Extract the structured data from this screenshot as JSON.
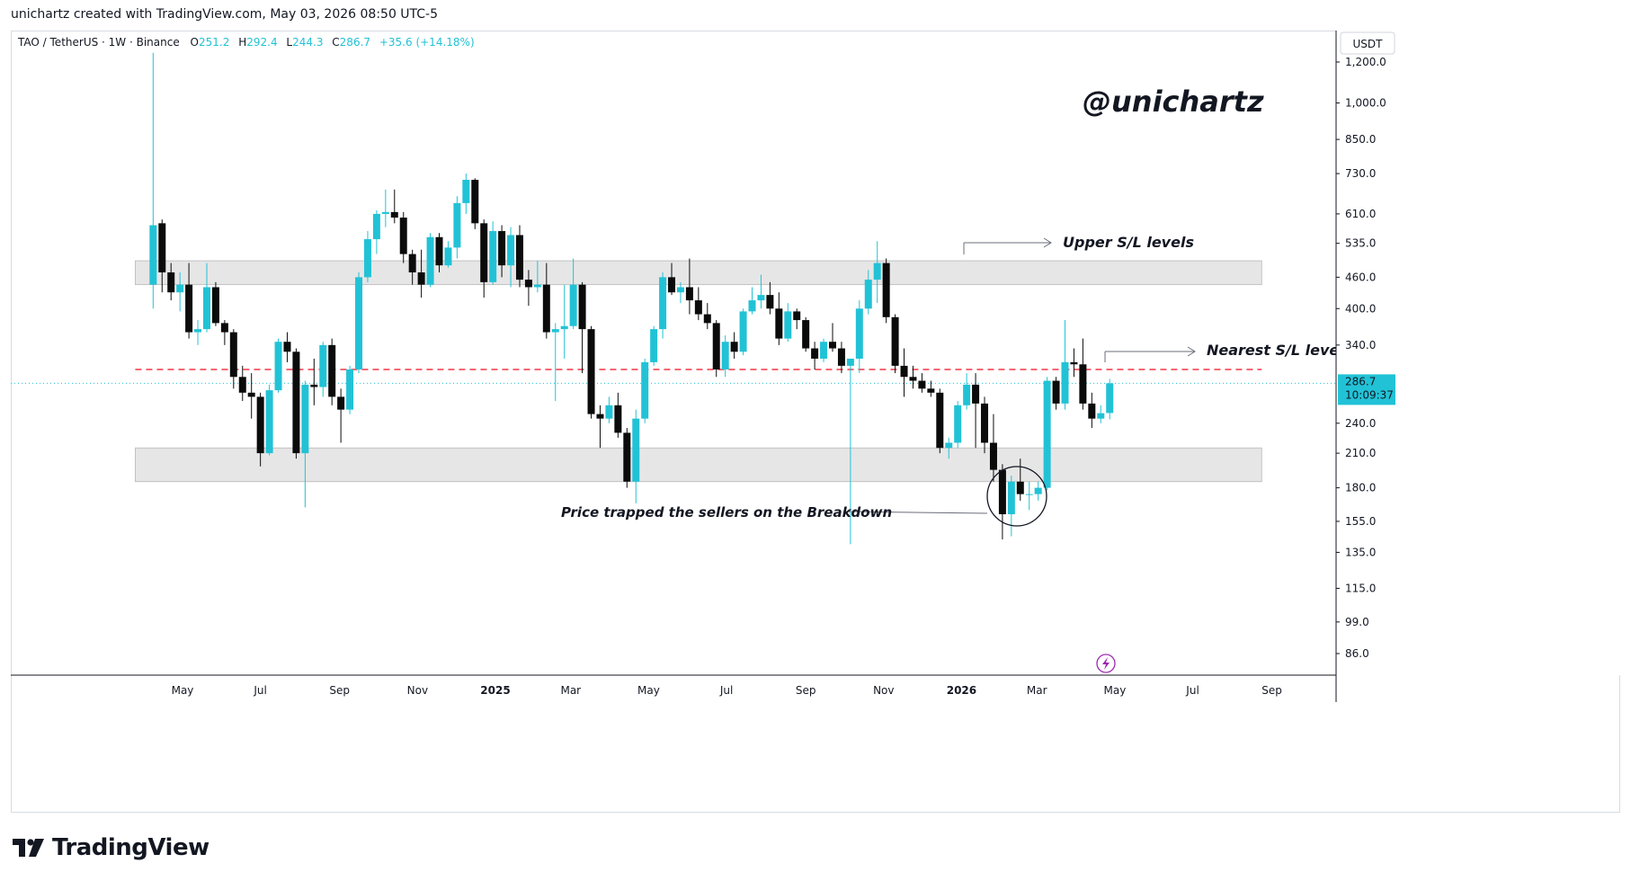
{
  "header": {
    "credit": "unichartz created with TradingView.com, May 03, 2026 08:50 UTC-5"
  },
  "legend": {
    "symbol": "TAO / TetherUS · 1W · Binance",
    "o_label": "O",
    "o_value": "251.2",
    "h_label": "H",
    "h_value": "292.4",
    "l_label": "L",
    "l_value": "244.3",
    "c_label": "C",
    "c_value": "286.7",
    "change": "+35.6 (+14.18%)"
  },
  "watermark": "@unichartz",
  "currency": "USDT",
  "price_badge": {
    "price": "286.7",
    "countdown": "10:09:37"
  },
  "annotations": {
    "upper": "Upper S/L levels",
    "nearest": "Nearest S/L levels",
    "trap": "Price trapped the sellers on the Breakdown"
  },
  "footer": {
    "brand": "TradingView"
  },
  "colors": {
    "up": "#22c2d6",
    "down": "#0b0b0b",
    "zone": "#e3e3e3",
    "dashed": "#f23645",
    "current": "#22c2d6",
    "legend_value": "#22c2d6",
    "flash": "#9c27b0"
  },
  "chart_data": {
    "type": "candlestick",
    "scale": "log",
    "ylim": [
      78,
      1250
    ],
    "yticks": [
      "1,200.0",
      "1,000.0",
      "850.0",
      "730.0",
      "610.0",
      "535.0",
      "460.0",
      "400.0",
      "340.0",
      "286.7",
      "240.0",
      "210.0",
      "180.0",
      "155.0",
      "135.0",
      "115.0",
      "99.0",
      "86.0"
    ],
    "ytick_values": [
      1200,
      1000,
      850,
      730,
      610,
      535,
      460,
      400,
      340,
      286.7,
      240,
      210,
      180,
      155,
      135,
      115,
      99,
      86
    ],
    "xticks": [
      {
        "label": "May",
        "date": "2024-05-01",
        "bold": false
      },
      {
        "label": "Jul",
        "date": "2024-07-01",
        "bold": false
      },
      {
        "label": "Sep",
        "date": "2024-09-01",
        "bold": false
      },
      {
        "label": "Nov",
        "date": "2024-11-01",
        "bold": false
      },
      {
        "label": "2025",
        "date": "2025-01-01",
        "bold": true
      },
      {
        "label": "Mar",
        "date": "2025-03-01",
        "bold": false
      },
      {
        "label": "May",
        "date": "2025-05-01",
        "bold": false
      },
      {
        "label": "Jul",
        "date": "2025-07-01",
        "bold": false
      },
      {
        "label": "Sep",
        "date": "2025-09-01",
        "bold": false
      },
      {
        "label": "Nov",
        "date": "2025-11-01",
        "bold": false
      },
      {
        "label": "2026",
        "date": "2026-01-01",
        "bold": true
      },
      {
        "label": "Mar",
        "date": "2026-03-01",
        "bold": false
      },
      {
        "label": "May",
        "date": "2026-05-01",
        "bold": false
      },
      {
        "label": "Jul",
        "date": "2026-07-01",
        "bold": false
      },
      {
        "label": "Sep",
        "date": "2026-09-01",
        "bold": false
      }
    ],
    "zones": [
      {
        "from": "2024-03-25",
        "to": "2026-08-24",
        "low": 445,
        "high": 495
      },
      {
        "from": "2024-03-25",
        "to": "2026-08-24",
        "low": 185,
        "high": 215
      }
    ],
    "levels": [
      {
        "price": 305,
        "style": "dashed",
        "from": "2024-03-25",
        "to": "2026-08-24"
      }
    ],
    "current_price": 286.7,
    "candles": [
      {
        "date": "2024-04-08",
        "o": 445,
        "h": 1250,
        "l": 400,
        "c": 580
      },
      {
        "date": "2024-04-15",
        "o": 585,
        "h": 595,
        "l": 430,
        "c": 470
      },
      {
        "date": "2024-04-22",
        "o": 470,
        "h": 490,
        "l": 415,
        "c": 430
      },
      {
        "date": "2024-04-29",
        "o": 430,
        "h": 470,
        "l": 395,
        "c": 445
      },
      {
        "date": "2024-05-06",
        "o": 445,
        "h": 490,
        "l": 350,
        "c": 360
      },
      {
        "date": "2024-05-13",
        "o": 360,
        "h": 380,
        "l": 340,
        "c": 365
      },
      {
        "date": "2024-05-20",
        "o": 365,
        "h": 490,
        "l": 360,
        "c": 440
      },
      {
        "date": "2024-05-27",
        "o": 440,
        "h": 450,
        "l": 370,
        "c": 375
      },
      {
        "date": "2024-06-03",
        "o": 375,
        "h": 380,
        "l": 340,
        "c": 360
      },
      {
        "date": "2024-06-10",
        "o": 360,
        "h": 365,
        "l": 280,
        "c": 295
      },
      {
        "date": "2024-06-17",
        "o": 295,
        "h": 310,
        "l": 265,
        "c": 275
      },
      {
        "date": "2024-06-24",
        "o": 275,
        "h": 300,
        "l": 245,
        "c": 270
      },
      {
        "date": "2024-07-01",
        "o": 270,
        "h": 275,
        "l": 198,
        "c": 210
      },
      {
        "date": "2024-07-08",
        "o": 210,
        "h": 285,
        "l": 208,
        "c": 278
      },
      {
        "date": "2024-07-15",
        "o": 278,
        "h": 350,
        "l": 275,
        "c": 345
      },
      {
        "date": "2024-07-22",
        "o": 345,
        "h": 360,
        "l": 315,
        "c": 330
      },
      {
        "date": "2024-07-29",
        "o": 330,
        "h": 335,
        "l": 205,
        "c": 210
      },
      {
        "date": "2024-08-05",
        "o": 210,
        "h": 290,
        "l": 165,
        "c": 285
      },
      {
        "date": "2024-08-12",
        "o": 285,
        "h": 320,
        "l": 260,
        "c": 282
      },
      {
        "date": "2024-08-19",
        "o": 282,
        "h": 345,
        "l": 270,
        "c": 340
      },
      {
        "date": "2024-08-26",
        "o": 340,
        "h": 350,
        "l": 260,
        "c": 270
      },
      {
        "date": "2024-09-02",
        "o": 270,
        "h": 280,
        "l": 220,
        "c": 255
      },
      {
        "date": "2024-09-09",
        "o": 255,
        "h": 310,
        "l": 250,
        "c": 305
      },
      {
        "date": "2024-09-16",
        "o": 305,
        "h": 470,
        "l": 300,
        "c": 460
      },
      {
        "date": "2024-09-23",
        "o": 460,
        "h": 565,
        "l": 450,
        "c": 545
      },
      {
        "date": "2024-09-30",
        "o": 545,
        "h": 620,
        "l": 510,
        "c": 610
      },
      {
        "date": "2024-10-07",
        "o": 610,
        "h": 680,
        "l": 575,
        "c": 615
      },
      {
        "date": "2024-10-14",
        "o": 615,
        "h": 680,
        "l": 585,
        "c": 600
      },
      {
        "date": "2024-10-21",
        "o": 600,
        "h": 615,
        "l": 490,
        "c": 510
      },
      {
        "date": "2024-10-28",
        "o": 510,
        "h": 520,
        "l": 445,
        "c": 470
      },
      {
        "date": "2024-11-04",
        "o": 470,
        "h": 520,
        "l": 420,
        "c": 445
      },
      {
        "date": "2024-11-11",
        "o": 445,
        "h": 560,
        "l": 440,
        "c": 550
      },
      {
        "date": "2024-11-18",
        "o": 550,
        "h": 560,
        "l": 470,
        "c": 485
      },
      {
        "date": "2024-11-25",
        "o": 485,
        "h": 540,
        "l": 480,
        "c": 525
      },
      {
        "date": "2024-12-02",
        "o": 525,
        "h": 660,
        "l": 500,
        "c": 640
      },
      {
        "date": "2024-12-09",
        "o": 640,
        "h": 730,
        "l": 610,
        "c": 710
      },
      {
        "date": "2024-12-16",
        "o": 710,
        "h": 715,
        "l": 570,
        "c": 585
      },
      {
        "date": "2024-12-23",
        "o": 585,
        "h": 595,
        "l": 420,
        "c": 450
      },
      {
        "date": "2024-12-30",
        "o": 450,
        "h": 590,
        "l": 445,
        "c": 565
      },
      {
        "date": "2025-01-06",
        "o": 565,
        "h": 580,
        "l": 460,
        "c": 485
      },
      {
        "date": "2025-01-13",
        "o": 485,
        "h": 575,
        "l": 440,
        "c": 555
      },
      {
        "date": "2025-01-20",
        "o": 555,
        "h": 580,
        "l": 440,
        "c": 455
      },
      {
        "date": "2025-01-27",
        "o": 455,
        "h": 475,
        "l": 405,
        "c": 440
      },
      {
        "date": "2025-02-03",
        "o": 440,
        "h": 495,
        "l": 430,
        "c": 445
      },
      {
        "date": "2025-02-10",
        "o": 445,
        "h": 490,
        "l": 350,
        "c": 360
      },
      {
        "date": "2025-02-17",
        "o": 360,
        "h": 375,
        "l": 265,
        "c": 365
      },
      {
        "date": "2025-02-24",
        "o": 365,
        "h": 445,
        "l": 320,
        "c": 370
      },
      {
        "date": "2025-03-03",
        "o": 370,
        "h": 500,
        "l": 365,
        "c": 445
      },
      {
        "date": "2025-03-10",
        "o": 445,
        "h": 450,
        "l": 300,
        "c": 365
      },
      {
        "date": "2025-03-17",
        "o": 365,
        "h": 370,
        "l": 245,
        "c": 250
      },
      {
        "date": "2025-03-24",
        "o": 250,
        "h": 260,
        "l": 215,
        "c": 245
      },
      {
        "date": "2025-03-31",
        "o": 245,
        "h": 270,
        "l": 240,
        "c": 260
      },
      {
        "date": "2025-04-07",
        "o": 260,
        "h": 275,
        "l": 225,
        "c": 230
      },
      {
        "date": "2025-04-14",
        "o": 230,
        "h": 235,
        "l": 180,
        "c": 185
      },
      {
        "date": "2025-04-21",
        "o": 185,
        "h": 255,
        "l": 168,
        "c": 245
      },
      {
        "date": "2025-04-28",
        "o": 245,
        "h": 320,
        "l": 240,
        "c": 315
      },
      {
        "date": "2025-05-05",
        "o": 315,
        "h": 370,
        "l": 310,
        "c": 365
      },
      {
        "date": "2025-05-12",
        "o": 365,
        "h": 470,
        "l": 350,
        "c": 460
      },
      {
        "date": "2025-05-19",
        "o": 460,
        "h": 490,
        "l": 425,
        "c": 430
      },
      {
        "date": "2025-05-26",
        "o": 430,
        "h": 450,
        "l": 410,
        "c": 440
      },
      {
        "date": "2025-06-02",
        "o": 440,
        "h": 500,
        "l": 390,
        "c": 415
      },
      {
        "date": "2025-06-09",
        "o": 415,
        "h": 440,
        "l": 380,
        "c": 390
      },
      {
        "date": "2025-06-16",
        "o": 390,
        "h": 410,
        "l": 365,
        "c": 375
      },
      {
        "date": "2025-06-23",
        "o": 375,
        "h": 380,
        "l": 295,
        "c": 305
      },
      {
        "date": "2025-06-30",
        "o": 305,
        "h": 355,
        "l": 295,
        "c": 345
      },
      {
        "date": "2025-07-07",
        "o": 345,
        "h": 360,
        "l": 320,
        "c": 330
      },
      {
        "date": "2025-07-14",
        "o": 330,
        "h": 400,
        "l": 325,
        "c": 395
      },
      {
        "date": "2025-07-21",
        "o": 395,
        "h": 440,
        "l": 390,
        "c": 415
      },
      {
        "date": "2025-07-28",
        "o": 415,
        "h": 465,
        "l": 400,
        "c": 425
      },
      {
        "date": "2025-08-04",
        "o": 425,
        "h": 450,
        "l": 390,
        "c": 400
      },
      {
        "date": "2025-08-11",
        "o": 400,
        "h": 430,
        "l": 340,
        "c": 350
      },
      {
        "date": "2025-08-18",
        "o": 350,
        "h": 410,
        "l": 345,
        "c": 395
      },
      {
        "date": "2025-08-25",
        "o": 395,
        "h": 400,
        "l": 365,
        "c": 380
      },
      {
        "date": "2025-09-01",
        "o": 380,
        "h": 385,
        "l": 330,
        "c": 335
      },
      {
        "date": "2025-09-08",
        "o": 335,
        "h": 345,
        "l": 305,
        "c": 320
      },
      {
        "date": "2025-09-15",
        "o": 320,
        "h": 350,
        "l": 315,
        "c": 345
      },
      {
        "date": "2025-09-22",
        "o": 345,
        "h": 375,
        "l": 330,
        "c": 335
      },
      {
        "date": "2025-09-29",
        "o": 335,
        "h": 345,
        "l": 300,
        "c": 310
      },
      {
        "date": "2025-10-06",
        "o": 310,
        "h": 315,
        "l": 140,
        "c": 320
      },
      {
        "date": "2025-10-13",
        "o": 320,
        "h": 415,
        "l": 300,
        "c": 400
      },
      {
        "date": "2025-10-20",
        "o": 400,
        "h": 475,
        "l": 390,
        "c": 455
      },
      {
        "date": "2025-10-27",
        "o": 455,
        "h": 540,
        "l": 410,
        "c": 490
      },
      {
        "date": "2025-11-03",
        "o": 490,
        "h": 500,
        "l": 375,
        "c": 385
      },
      {
        "date": "2025-11-10",
        "o": 385,
        "h": 390,
        "l": 300,
        "c": 310
      },
      {
        "date": "2025-11-17",
        "o": 310,
        "h": 335,
        "l": 270,
        "c": 295
      },
      {
        "date": "2025-11-24",
        "o": 295,
        "h": 310,
        "l": 280,
        "c": 290
      },
      {
        "date": "2025-12-01",
        "o": 290,
        "h": 300,
        "l": 275,
        "c": 280
      },
      {
        "date": "2025-12-08",
        "o": 280,
        "h": 290,
        "l": 270,
        "c": 275
      },
      {
        "date": "2025-12-15",
        "o": 275,
        "h": 280,
        "l": 210,
        "c": 215
      },
      {
        "date": "2025-12-22",
        "o": 215,
        "h": 225,
        "l": 205,
        "c": 220
      },
      {
        "date": "2025-12-29",
        "o": 220,
        "h": 265,
        "l": 215,
        "c": 260
      },
      {
        "date": "2026-01-05",
        "o": 260,
        "h": 300,
        "l": 255,
        "c": 285
      },
      {
        "date": "2026-01-12",
        "o": 285,
        "h": 300,
        "l": 215,
        "c": 262
      },
      {
        "date": "2026-01-19",
        "o": 262,
        "h": 270,
        "l": 210,
        "c": 220
      },
      {
        "date": "2026-01-26",
        "o": 220,
        "h": 250,
        "l": 185,
        "c": 195
      },
      {
        "date": "2026-02-02",
        "o": 195,
        "h": 200,
        "l": 143,
        "c": 160
      },
      {
        "date": "2026-02-09",
        "o": 160,
        "h": 190,
        "l": 145,
        "c": 185
      },
      {
        "date": "2026-02-16",
        "o": 185,
        "h": 205,
        "l": 170,
        "c": 175
      },
      {
        "date": "2026-02-23",
        "o": 175,
        "h": 185,
        "l": 163,
        "c": 175
      },
      {
        "date": "2026-03-02",
        "o": 175,
        "h": 185,
        "l": 170,
        "c": 180
      },
      {
        "date": "2026-03-09",
        "o": 180,
        "h": 295,
        "l": 178,
        "c": 290
      },
      {
        "date": "2026-03-16",
        "o": 290,
        "h": 295,
        "l": 255,
        "c": 262
      },
      {
        "date": "2026-03-23",
        "o": 262,
        "h": 380,
        "l": 255,
        "c": 315
      },
      {
        "date": "2026-03-30",
        "o": 315,
        "h": 335,
        "l": 295,
        "c": 312
      },
      {
        "date": "2026-04-06",
        "o": 312,
        "h": 350,
        "l": 255,
        "c": 262
      },
      {
        "date": "2026-04-13",
        "o": 262,
        "h": 275,
        "l": 235,
        "c": 245
      },
      {
        "date": "2026-04-20",
        "o": 245,
        "h": 260,
        "l": 240,
        "c": 251
      },
      {
        "date": "2026-04-27",
        "o": 251.2,
        "h": 292.4,
        "l": 244.3,
        "c": 286.7
      }
    ]
  }
}
